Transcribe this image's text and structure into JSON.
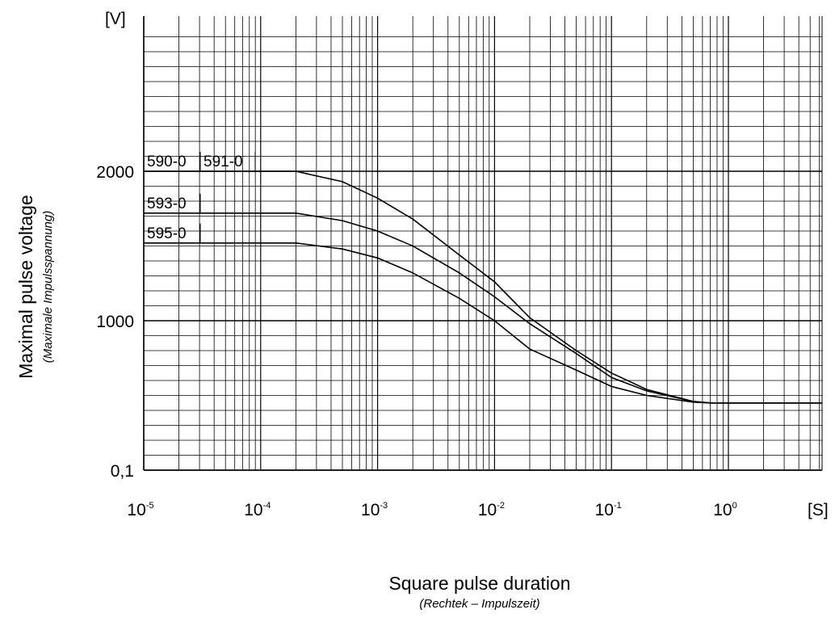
{
  "chart_data": {
    "type": "line",
    "xscale": "log",
    "yscale": "custom",
    "xlim": [
      1e-05,
      1.0
    ],
    "y_unit": "[V]",
    "x_unit": "[S]",
    "xlabel": "Square pulse duration",
    "xlabel_sub": "(Rechtek – Impulszeit)",
    "ylabel": "Maximal pulse voltage",
    "ylabel_sub": "(Maximale Impulsspannung)",
    "x_ticks": [
      {
        "base": "10",
        "exp": "-5",
        "value": 1e-05
      },
      {
        "base": "10",
        "exp": "-4",
        "value": 0.0001
      },
      {
        "base": "10",
        "exp": "-3",
        "value": 0.001
      },
      {
        "base": "10",
        "exp": "-2",
        "value": 0.01
      },
      {
        "base": "10",
        "exp": "-1",
        "value": 0.1
      },
      {
        "base": "10",
        "exp": "0",
        "value": 1
      }
    ],
    "y_ticks": [
      {
        "label": "2000",
        "value": 2000
      },
      {
        "label": "1000",
        "value": 1000
      },
      {
        "label": "0,1",
        "value": 0.1
      }
    ],
    "grid": true,
    "series": [
      {
        "name": "590-0 591-0",
        "labels": [
          "590-0",
          "591-0"
        ],
        "points": [
          [
            1e-05,
            2000
          ],
          [
            0.0002,
            2000
          ],
          [
            0.0005,
            1930
          ],
          [
            0.001,
            1820
          ],
          [
            0.002,
            1680
          ],
          [
            0.005,
            1440
          ],
          [
            0.01,
            1260
          ],
          [
            0.02,
            1020
          ],
          [
            0.05,
            800
          ],
          [
            0.1,
            650
          ],
          [
            0.2,
            540
          ],
          [
            0.5,
            460
          ],
          [
            0.7,
            450
          ],
          [
            1.0,
            450
          ]
        ]
      },
      {
        "name": "593-0",
        "labels": [
          "593-0"
        ],
        "points": [
          [
            1e-05,
            1720
          ],
          [
            0.0002,
            1720
          ],
          [
            0.0005,
            1670
          ],
          [
            0.001,
            1600
          ],
          [
            0.002,
            1500
          ],
          [
            0.005,
            1320
          ],
          [
            0.01,
            1160
          ],
          [
            0.02,
            980
          ],
          [
            0.05,
            780
          ],
          [
            0.1,
            620
          ],
          [
            0.2,
            530
          ],
          [
            0.5,
            460
          ],
          [
            0.7,
            450
          ],
          [
            1.0,
            450
          ]
        ]
      },
      {
        "name": "595-0",
        "labels": [
          "595-0"
        ],
        "points": [
          [
            1e-05,
            1520
          ],
          [
            0.0002,
            1520
          ],
          [
            0.0005,
            1480
          ],
          [
            0.001,
            1420
          ],
          [
            0.002,
            1320
          ],
          [
            0.005,
            1150
          ],
          [
            0.01,
            1000
          ],
          [
            0.02,
            810
          ],
          [
            0.05,
            670
          ],
          [
            0.1,
            560
          ],
          [
            0.2,
            500
          ],
          [
            0.5,
            455
          ],
          [
            0.7,
            450
          ],
          [
            1.0,
            450
          ]
        ]
      }
    ]
  }
}
